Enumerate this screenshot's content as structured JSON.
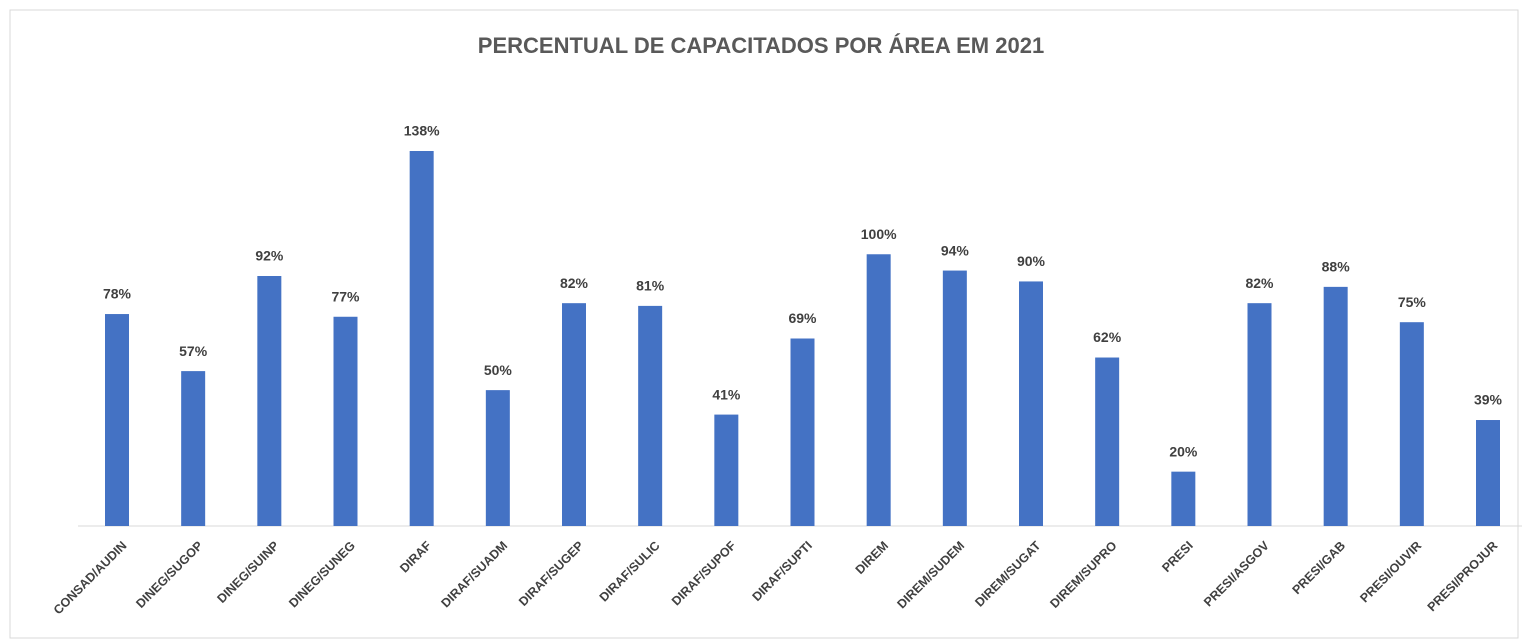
{
  "chart_data": {
    "type": "bar",
    "title": "PERCENTUAL DE CAPACITADOS POR ÁREA EM 2021",
    "categories": [
      "CONSAD/AUDIN",
      "DINEG/SUGOP",
      "DINEG/SUINP",
      "DINEG/SUNEG",
      "DIRAF",
      "DIRAF/SUADM",
      "DIRAF/SUGEP",
      "DIRAF/SULIC",
      "DIRAF/SUPOF",
      "DIRAF/SUPTI",
      "DIREM",
      "DIREM/SUDEM",
      "DIREM/SUGAT",
      "DIREM/SUPRO",
      "PRESI",
      "PRESI/ASGOV",
      "PRESI/GAB",
      "PRESI/OUVIR",
      "PRESI/PROJUR"
    ],
    "values": [
      78,
      57,
      92,
      77,
      138,
      50,
      82,
      81,
      41,
      69,
      100,
      94,
      90,
      62,
      20,
      82,
      88,
      75,
      39
    ],
    "value_labels": [
      "78%",
      "57%",
      "92%",
      "77%",
      "138%",
      "50%",
      "82%",
      "81%",
      "41%",
      "69%",
      "100%",
      "94%",
      "90%",
      "62%",
      "20%",
      "82%",
      "88%",
      "75%",
      "39%"
    ],
    "color": "#4472c4"
  }
}
